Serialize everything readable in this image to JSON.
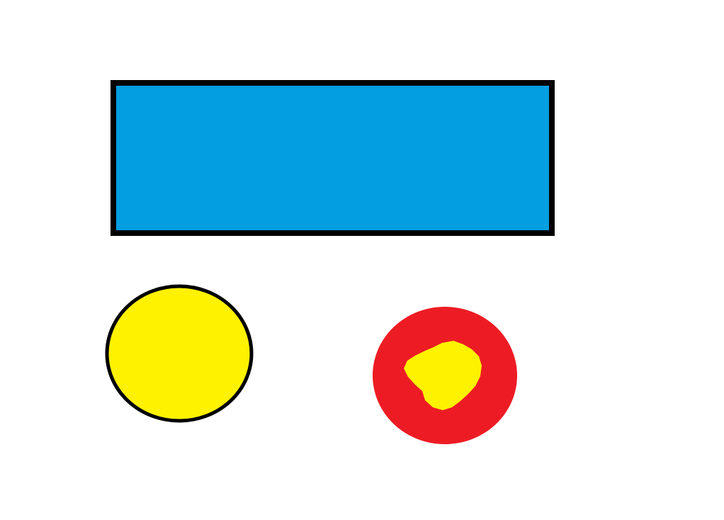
{
  "colors": {
    "background": "#ffffff",
    "rectangle_fill": "#039ee1",
    "rectangle_border": "#000000",
    "yellow_circle_fill": "#fff200",
    "yellow_circle_border": "#000000",
    "red_circle_fill": "#ed1c24",
    "red_circle_center_fill": "#fff200"
  },
  "shapes": {
    "rectangle": {
      "shape": "rectangle"
    },
    "left_circle": {
      "shape": "circle"
    },
    "right_circle": {
      "shape": "circle"
    }
  }
}
